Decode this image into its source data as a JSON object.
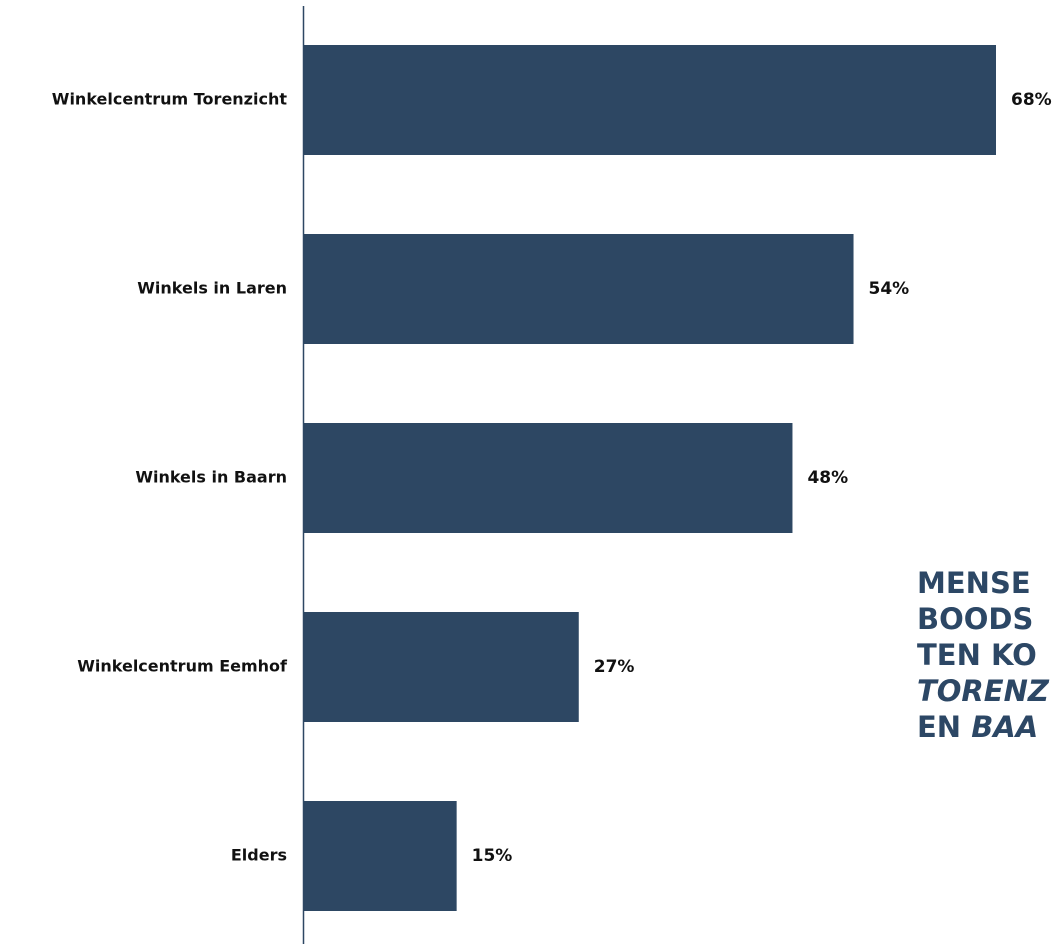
{
  "chart_data": {
    "type": "bar",
    "orientation": "horizontal",
    "categories": [
      "Winkelcentrum Torenzicht",
      "Winkels in Laren",
      "Winkels in Baarn",
      "Winkelcentrum Eemhof",
      "Elders"
    ],
    "values": [
      68,
      54,
      48,
      27,
      15
    ],
    "value_labels": [
      "68%",
      "54%",
      "48%",
      "27%",
      "15%"
    ],
    "unit": "%",
    "xlim": [
      0,
      68
    ],
    "grid": false,
    "legend": "none",
    "bar_color": "#2d4763",
    "axis_color": "#2d4763"
  },
  "callout": {
    "color": "#2c4765",
    "lines": [
      {
        "parts": [
          {
            "text": "MENSE",
            "italic": false
          }
        ]
      },
      {
        "parts": [
          {
            "text": "BOODS",
            "italic": false
          }
        ]
      },
      {
        "parts": [
          {
            "text": "TEN KO",
            "italic": false
          }
        ]
      },
      {
        "parts": [
          {
            "text": "TORENZ",
            "italic": true
          }
        ]
      },
      {
        "parts": [
          {
            "text": "EN ",
            "italic": false
          },
          {
            "text": "BAA",
            "italic": true
          }
        ]
      }
    ]
  }
}
